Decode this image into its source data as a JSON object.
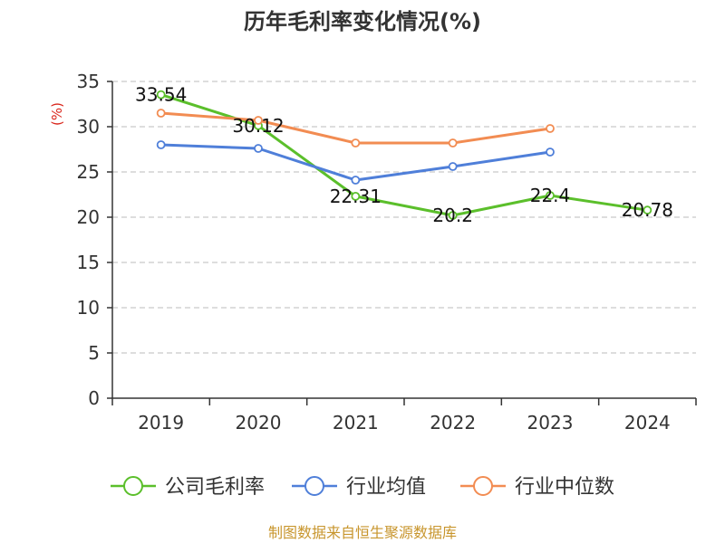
{
  "chart_data": {
    "type": "line",
    "title": "历年毛利率变化情况(%)",
    "ylabel": "(%)",
    "categories": [
      "2019",
      "2020",
      "2021",
      "2022",
      "2023",
      "2024"
    ],
    "ylim": [
      0,
      35
    ],
    "yticks": [
      0,
      5,
      10,
      15,
      20,
      25,
      30,
      35
    ],
    "grid": true,
    "legend_position": "bottom",
    "series": [
      {
        "name": "公司毛利率",
        "color": "#5bbf2b",
        "values": [
          33.54,
          30.12,
          22.31,
          20.2,
          22.4,
          20.78
        ],
        "labels": [
          "33.54",
          "30.12",
          "22.31",
          "20.2",
          "22.4",
          "20.78"
        ]
      },
      {
        "name": "行业均值",
        "color": "#4f7fd9",
        "values": [
          28.0,
          27.6,
          24.1,
          25.6,
          27.2,
          null
        ]
      },
      {
        "name": "行业中位数",
        "color": "#f28c52",
        "values": [
          31.5,
          30.7,
          28.2,
          28.2,
          29.8,
          null
        ]
      }
    ]
  },
  "source": "制图数据来自恒生聚源数据库",
  "colors": {
    "axis": "#333333",
    "grid": "#bbbbbb",
    "ylabel": "#d9261c",
    "source": "#c8962e"
  }
}
